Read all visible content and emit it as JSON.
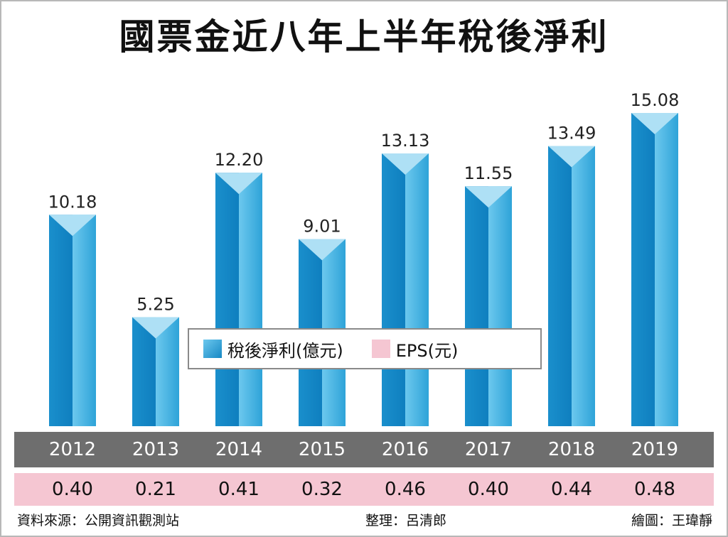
{
  "title": "國票金近八年上半年稅後淨利",
  "chart_data": {
    "type": "bar",
    "categories": [
      "2012",
      "2013",
      "2014",
      "2015",
      "2016",
      "2017",
      "2018",
      "2019"
    ],
    "series": [
      {
        "name": "稅後淨利(億元)",
        "values": [
          10.18,
          5.25,
          12.2,
          9.01,
          13.13,
          11.55,
          13.49,
          15.08
        ]
      },
      {
        "name": "EPS(元)",
        "values": [
          0.4,
          0.21,
          0.41,
          0.32,
          0.46,
          0.4,
          0.44,
          0.48
        ]
      }
    ],
    "value_labels": [
      "10.18",
      "5.25",
      "12.20",
      "9.01",
      "13.13",
      "11.55",
      "13.49",
      "15.08"
    ],
    "eps_labels": [
      "0.40",
      "0.21",
      "0.41",
      "0.32",
      "0.46",
      "0.40",
      "0.44",
      "0.48"
    ],
    "ylim": [
      0,
      16
    ],
    "legend_position": "center"
  },
  "legend": {
    "item1_label": "稅後淨利(億元)",
    "item2_label": "EPS(元)",
    "item1_color": "#2ea3d8",
    "item2_color": "#f5c6d2"
  },
  "colors": {
    "bar_dark": "#1688c4",
    "bar_light": "#5fc3ea",
    "bar_cap": "#aee0f5",
    "year_band": "#6e6e6e",
    "eps_band": "#f5c6d2"
  },
  "footer": {
    "source": "資料來源：公開資訊觀測站",
    "editor": "整理：呂清郎",
    "artist": "繪圖：王瑋靜"
  }
}
